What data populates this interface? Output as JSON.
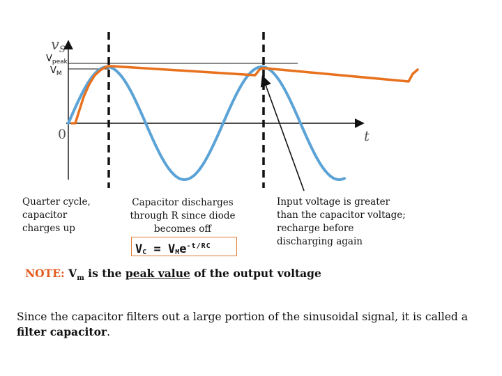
{
  "axis": {
    "y_symbol": "v",
    "y_subscript": "S",
    "x_symbol": "t",
    "origin": "0",
    "vpeak_main": "V",
    "vpeak_sub": "peak",
    "vm_main": "V",
    "vm_sub": "M"
  },
  "captions": {
    "quarter_cycle": "Quarter cycle, capacitor charges up",
    "discharge": "Capacitor discharges through R since diode becomes off",
    "recharge": "Input voltage is greater than the capacitor voltage; recharge before discharging again"
  },
  "formula": {
    "lhs_main": "V",
    "lhs_sub": "C",
    "equals": " = ",
    "rhs_main": "V",
    "rhs_sub": "M",
    "base": "e",
    "exponent": "-t/RC"
  },
  "note": {
    "label": "NOTE:",
    "vm_main": "V",
    "vm_sub": "m",
    "text_a": " is the ",
    "text_underlined": "peak value",
    "text_b": " of the output voltage"
  },
  "summary": {
    "text": "Since the capacitor filters out a large portion of the sinusoidal signal, it is called a ",
    "bold": "filter capacitor",
    "end": "."
  },
  "colors": {
    "sine": "#5ba3d6",
    "output": "#e8711e",
    "formula_border": "#e07a2e",
    "note_label": "#e35a1c",
    "axis": "#111111"
  }
}
